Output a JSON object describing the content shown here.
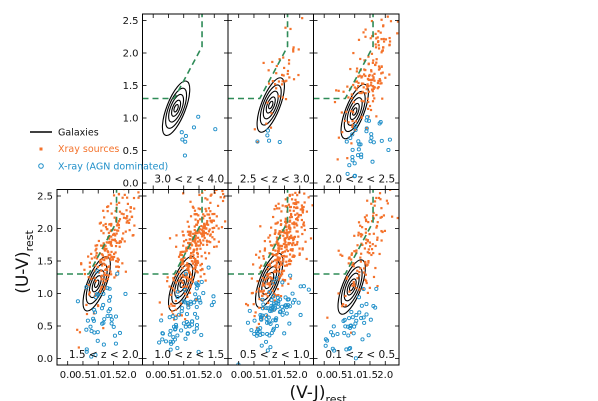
{
  "chart_data": {
    "type": "scatter",
    "title": "",
    "xlabel": "(V-J)",
    "xlabel_sub": "rest",
    "ylabel": "(U-V)",
    "ylabel_sub": "rest",
    "xlim": [
      -0.35,
      2.45
    ],
    "ylim": [
      -0.1,
      2.6
    ],
    "xticks": [
      "0.0",
      "0.5",
      "1.0",
      "1.5",
      "2.0"
    ],
    "yticks": [
      "0.0",
      "0.5",
      "1.0",
      "1.5",
      "2.0",
      "2.5"
    ],
    "quiescent_boundary": [
      [
        -0.35,
        1.3
      ],
      [
        0.69,
        1.3
      ],
      [
        1.6,
        2.1
      ],
      [
        1.6,
        2.6
      ]
    ],
    "colors": {
      "contour": "#000000",
      "xray": "#f4722b",
      "agn": "#1f8fc9",
      "boundary": "#2e8b57"
    },
    "legend": {
      "placement": "left, beside top-left panel",
      "items": [
        {
          "key": "galaxies",
          "label": "Galaxies",
          "color": "#000000"
        },
        {
          "key": "xray",
          "label": "Xray sources",
          "color": "#f4722b"
        },
        {
          "key": "agn",
          "label": "X-ray (AGN dominated)",
          "color": "#1f8fc9"
        }
      ]
    },
    "panels": [
      {
        "label": "3.0 < z < 4.0",
        "center": [
          0.75,
          1.15
        ],
        "n_xray": 0,
        "n_agn": 8
      },
      {
        "label": "2.5 < z < 3.0",
        "center": [
          1.05,
          1.2
        ],
        "n_xray": 45,
        "n_agn": 5
      },
      {
        "label": "2.0 < z < 2.5",
        "center": [
          1.0,
          1.1
        ],
        "n_xray": 170,
        "n_agn": 35
      },
      {
        "label": "1.5 < z < 2.0",
        "center": [
          0.95,
          1.15
        ],
        "n_xray": 230,
        "n_agn": 45
      },
      {
        "label": "1.0 < z < 1.5",
        "center": [
          0.95,
          1.15
        ],
        "n_xray": 320,
        "n_agn": 75
      },
      {
        "label": "0.5 < z < 1.0",
        "center": [
          1.0,
          1.2
        ],
        "n_xray": 380,
        "n_agn": 90
      },
      {
        "label": "0.1 < z < 0.5",
        "center": [
          0.9,
          1.1
        ],
        "n_xray": 130,
        "n_agn": 45
      }
    ]
  }
}
